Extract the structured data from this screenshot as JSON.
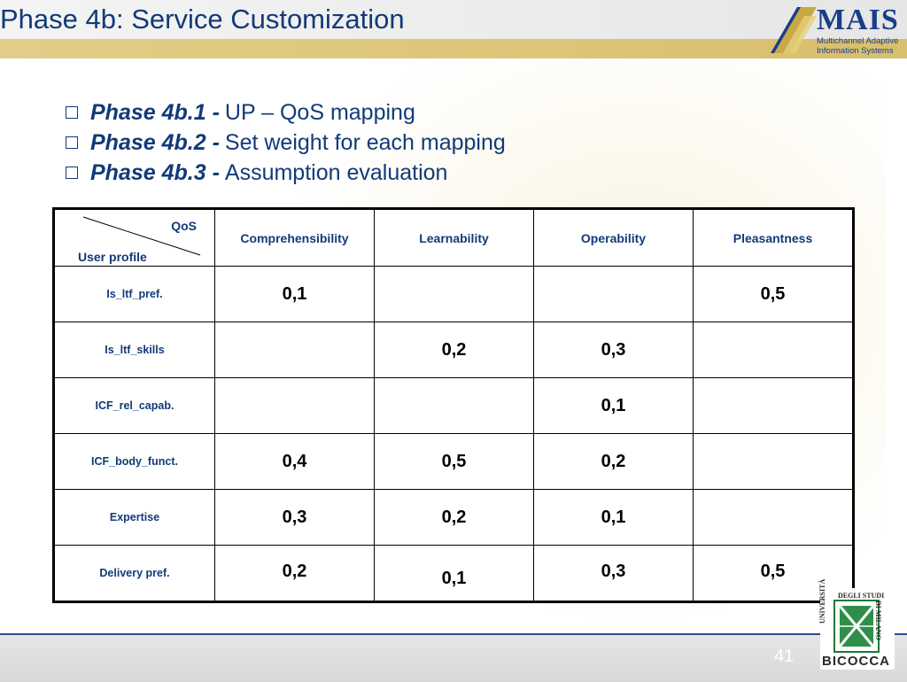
{
  "slide": {
    "title": "Phase 4b: Service Customization",
    "page_number": "41"
  },
  "logo": {
    "name": "MAIS",
    "subtitle_line1": "Multichannel Adaptive",
    "subtitle_line2": "Information Systems"
  },
  "seal": {
    "line1": "UNIVERSITÀ",
    "line2": "DEGLI STUDI",
    "line3": "DI MILANO",
    "name": "BICOCCA"
  },
  "bullets": [
    {
      "label": "Phase 4b.1 -",
      "text": "UP – QoS mapping"
    },
    {
      "label": "Phase 4b.2 -",
      "text": "Set weight for each mapping"
    },
    {
      "label": "Phase 4b.3 -",
      "text": "Assumption evaluation"
    }
  ],
  "table": {
    "corner_top": "QoS",
    "corner_bottom": "User profile",
    "columns": [
      "Comprehensibility",
      "Learnability",
      "Operability",
      "Pleasantness"
    ],
    "rows": [
      {
        "label": "Is_ltf_pref.",
        "values": [
          "0,1",
          "",
          "",
          "0,5"
        ]
      },
      {
        "label": "Is_ltf_skills",
        "values": [
          "",
          "0,2",
          "0,3",
          ""
        ]
      },
      {
        "label": "ICF_rel_capab.",
        "values": [
          "",
          "",
          "0,1",
          ""
        ]
      },
      {
        "label": "ICF_body_funct.",
        "values": [
          "0,4",
          "0,5",
          "0,2",
          ""
        ]
      },
      {
        "label": "Expertise",
        "values": [
          "0,3",
          "0,2",
          "0,1",
          ""
        ]
      },
      {
        "label": "Delivery pref.",
        "values": [
          "0,2",
          "0,1",
          "0,3",
          "0,5"
        ]
      }
    ]
  },
  "colors": {
    "title_text": "#123a78",
    "gold_band": "#d8bf6e",
    "footer_rule": "#2b4c8c"
  }
}
